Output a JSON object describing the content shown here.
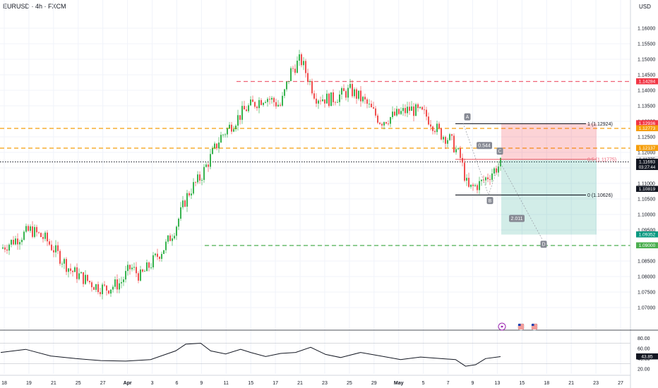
{
  "header": {
    "symbol": "EURUSD · 4h · FXCM",
    "currency": "USD"
  },
  "chart_data": {
    "type": "candlestick",
    "price_axis": {
      "range": [
        1.065,
        1.165
      ],
      "ticks": [
        "1.16000",
        "1.15500",
        "1.15000",
        "1.14500",
        "1.14000",
        "1.13500",
        "1.13000",
        "1.12500",
        "1.12000",
        "1.11500",
        "1.11000",
        "1.10500",
        "1.10000",
        "1.09500",
        "1.09000",
        "1.08500",
        "1.08000",
        "1.07500",
        "1.07000"
      ]
    },
    "time_axis": {
      "labels": [
        "18",
        "19",
        "21",
        "25",
        "27",
        "Apr",
        "3",
        "6",
        "9",
        "11",
        "15",
        "17",
        "21",
        "23",
        "25",
        "29",
        "May",
        "5",
        "7",
        "9",
        "13",
        "15",
        "18",
        "21",
        "23",
        "27"
      ]
    },
    "price_path": [
      [
        0,
        1.089
      ],
      [
        0.03,
        1.092
      ],
      [
        0.06,
        1.095
      ],
      [
        0.09,
        1.092
      ],
      [
        0.12,
        1.086
      ],
      [
        0.14,
        1.082
      ],
      [
        0.16,
        1.08
      ],
      [
        0.19,
        1.077
      ],
      [
        0.21,
        1.076
      ],
      [
        0.24,
        1.078
      ],
      [
        0.26,
        1.083
      ],
      [
        0.28,
        1.08
      ],
      [
        0.31,
        1.086
      ],
      [
        0.33,
        1.09
      ],
      [
        0.35,
        1.096
      ],
      [
        0.37,
        1.105
      ],
      [
        0.38,
        1.108
      ],
      [
        0.4,
        1.112
      ],
      [
        0.44,
        1.125
      ],
      [
        0.49,
        1.134
      ],
      [
        0.53,
        1.138
      ],
      [
        0.56,
        1.135
      ],
      [
        0.58,
        1.146
      ],
      [
        0.6,
        1.15
      ],
      [
        0.63,
        1.138
      ],
      [
        0.66,
        1.137
      ],
      [
        0.7,
        1.14
      ],
      [
        0.73,
        1.136
      ],
      [
        0.76,
        1.13
      ],
      [
        0.79,
        1.132
      ],
      [
        0.82,
        1.134
      ],
      [
        0.85,
        1.132
      ],
      [
        0.88,
        1.126
      ],
      [
        0.9,
        1.124
      ],
      [
        0.92,
        1.118
      ],
      [
        0.935,
        1.108
      ],
      [
        0.96,
        1.11
      ],
      [
        1.0,
        1.1163
      ]
    ],
    "horizontal_levels": [
      {
        "price": 1.14284,
        "style": "dashed",
        "color": "#f06377"
      },
      {
        "price": 1.12773,
        "style": "dashed",
        "color": "#f59e0b"
      },
      {
        "price": 1.12137,
        "style": "dashed",
        "color": "#f59e0b"
      },
      {
        "price": 1.11693,
        "style": "dotted",
        "color": "#131722"
      },
      {
        "price": 1.09,
        "style": "dashed",
        "color": "#4caf50"
      }
    ],
    "fib_levels": [
      {
        "label": "1 (1.12924)",
        "price": 1.12924
      },
      {
        "label": "0.5 (1.11775)",
        "price": 1.11775
      },
      {
        "label": "0 (1.10626)",
        "price": 1.10626
      }
    ],
    "pattern_points": [
      {
        "label": "A",
        "price": 1.1294
      },
      {
        "label": "B",
        "price": 1.1063
      },
      {
        "label": "C",
        "price": 1.117
      },
      {
        "label": "D",
        "price": 1.092
      }
    ],
    "ratios": [
      "0.544",
      "2.011"
    ],
    "position": {
      "entry": 1.11775,
      "stop": 1.12936,
      "target": 1.09352
    },
    "price_tags": [
      {
        "text": "1.14284",
        "price": 1.14284,
        "bg": "#f23645"
      },
      {
        "text": "1.12936",
        "price": 1.12936,
        "bg": "#f23645"
      },
      {
        "text": "1.12773",
        "price": 1.12773,
        "bg": "#f59e0b"
      },
      {
        "text": "1.12137",
        "price": 1.12137,
        "bg": "#f59e0b"
      },
      {
        "text": "1.11775",
        "price": 1.11775,
        "bg": "#e8e8ec"
      },
      {
        "text": "1.11693",
        "price": 1.11693,
        "bg": "#131722",
        "sub": "03:27:44"
      },
      {
        "text": "1.10819",
        "price": 1.10819,
        "bg": "#131722"
      },
      {
        "text": "1.09352",
        "price": 1.09352,
        "bg": "#089981"
      },
      {
        "text": "1.09000",
        "price": 1.09,
        "bg": "#4caf50"
      }
    ],
    "rsi": {
      "ticks": [
        "80.00",
        "60.00",
        "40.00",
        "20.00"
      ],
      "upper": 70,
      "lower": 30,
      "current": "43.85",
      "path": [
        [
          0,
          52
        ],
        [
          0.05,
          58
        ],
        [
          0.1,
          45
        ],
        [
          0.15,
          40
        ],
        [
          0.2,
          36
        ],
        [
          0.25,
          35
        ],
        [
          0.3,
          38
        ],
        [
          0.35,
          55
        ],
        [
          0.37,
          68
        ],
        [
          0.4,
          70
        ],
        [
          0.42,
          55
        ],
        [
          0.45,
          49
        ],
        [
          0.48,
          58
        ],
        [
          0.5,
          52
        ],
        [
          0.53,
          44
        ],
        [
          0.56,
          50
        ],
        [
          0.59,
          52
        ],
        [
          0.62,
          62
        ],
        [
          0.65,
          48
        ],
        [
          0.68,
          42
        ],
        [
          0.72,
          52
        ],
        [
          0.76,
          45
        ],
        [
          0.8,
          38
        ],
        [
          0.84,
          43
        ],
        [
          0.88,
          40
        ],
        [
          0.91,
          38
        ],
        [
          0.93,
          25
        ],
        [
          0.95,
          28
        ],
        [
          0.97,
          40
        ],
        [
          1.0,
          43.85
        ]
      ]
    },
    "event_icons": [
      "flash-icon",
      "us-flag-icon",
      "us-flag-icon"
    ]
  }
}
